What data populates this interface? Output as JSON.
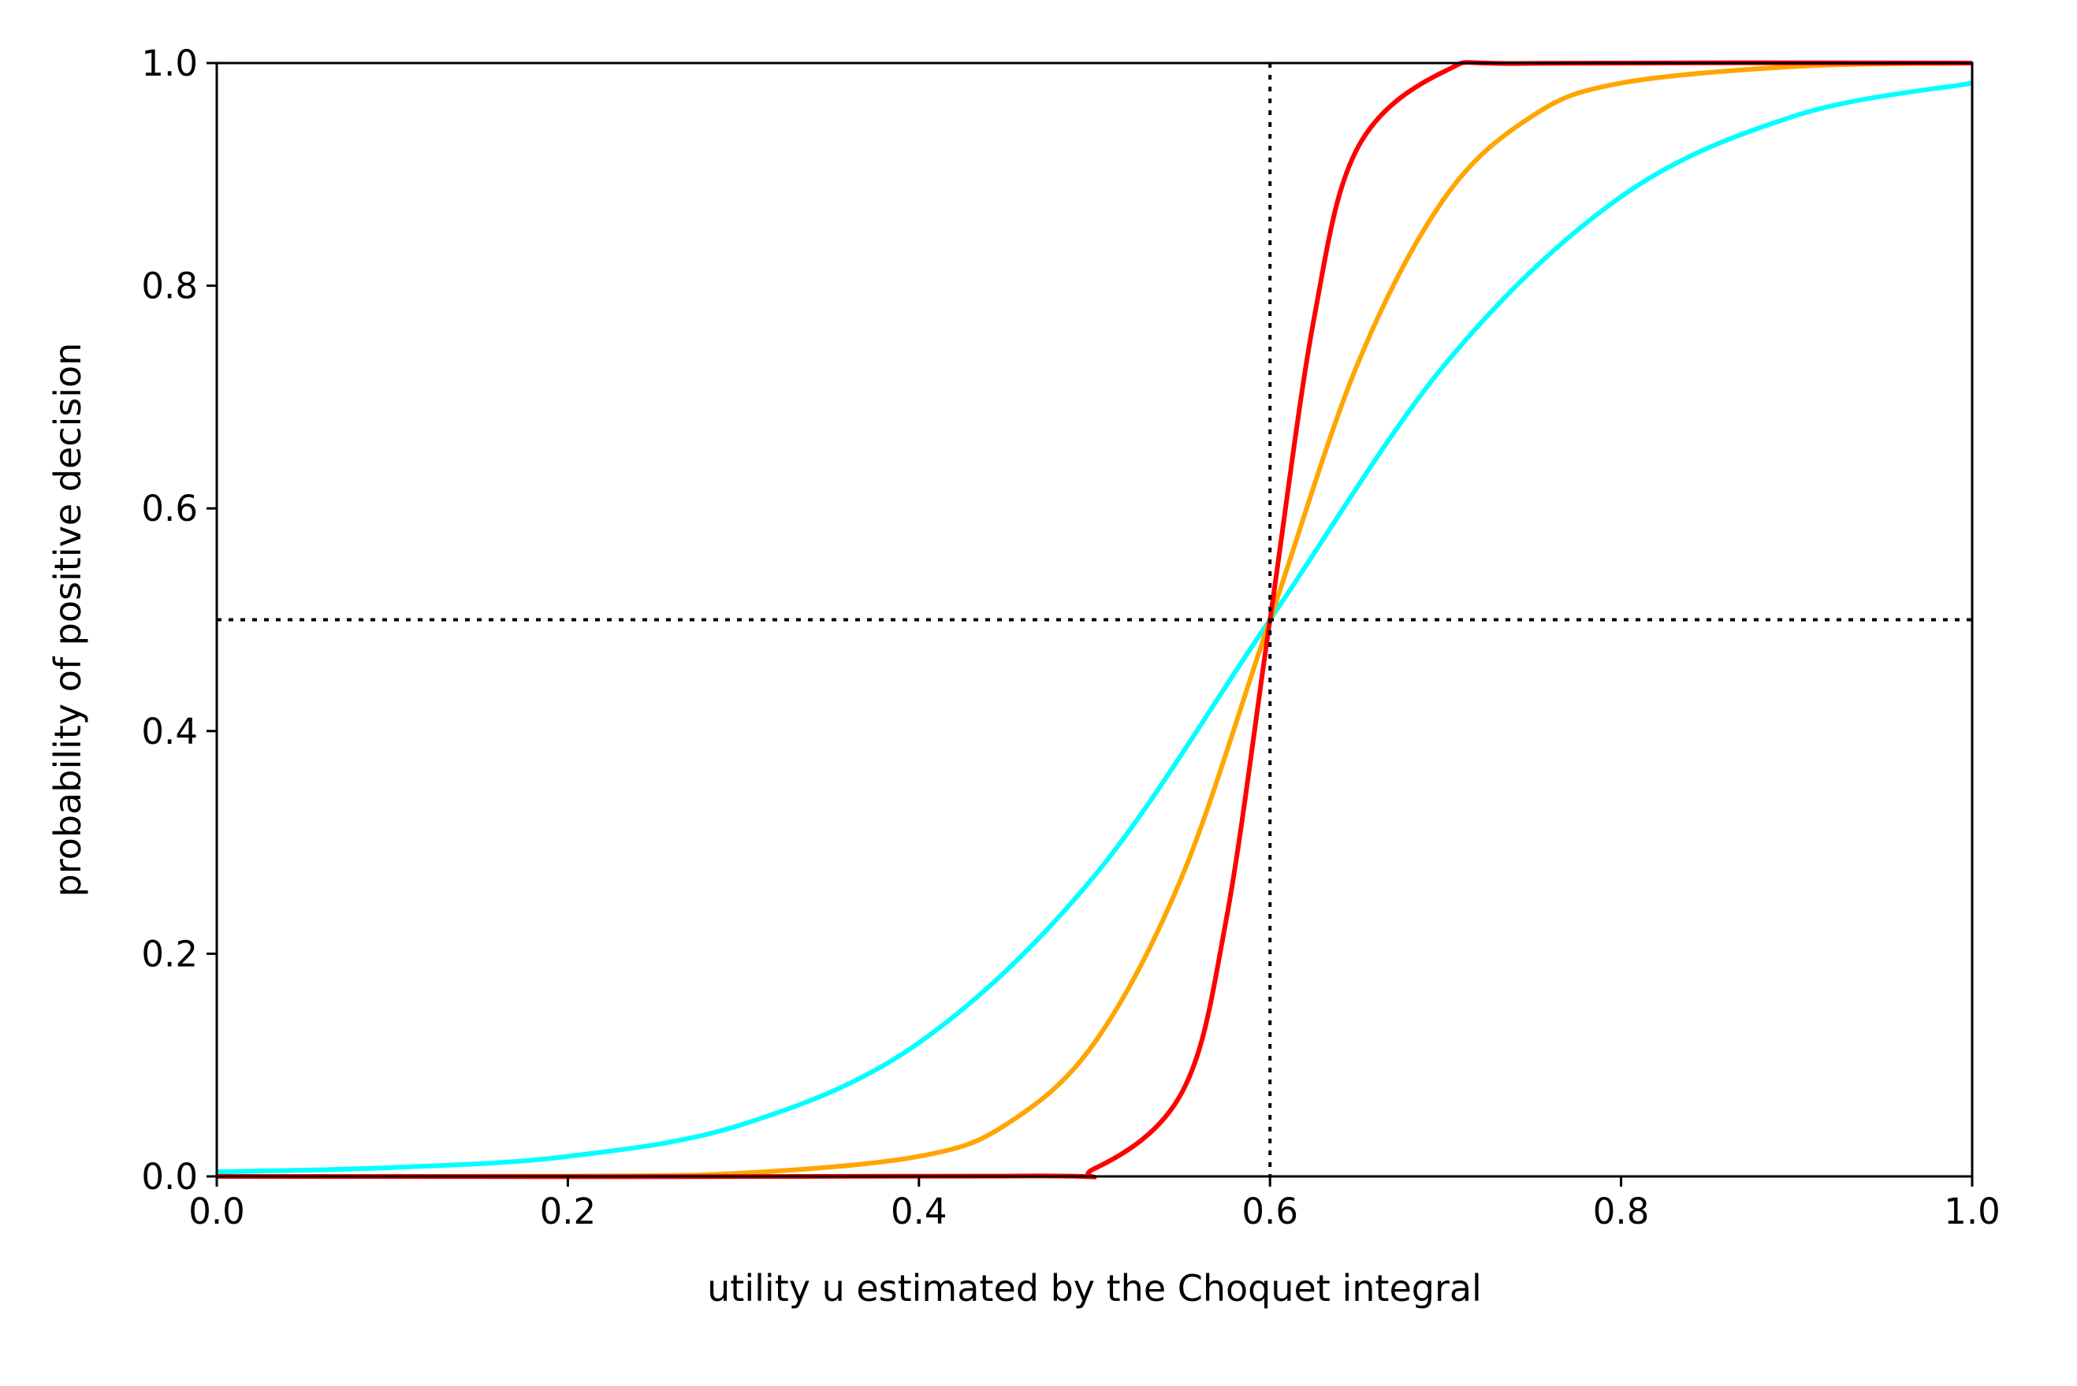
{
  "chart_data": {
    "type": "line",
    "title": "",
    "xlabel": "utility u estimated by the Choquet integral",
    "ylabel": "probability of positive decision",
    "xlim": [
      0.0,
      1.0
    ],
    "ylim": [
      0.0,
      1.0
    ],
    "xticks": [
      "0.0",
      "0.2",
      "0.4",
      "0.6",
      "0.8",
      "1.0"
    ],
    "yticks": [
      "0.0",
      "0.2",
      "0.4",
      "0.6",
      "0.8",
      "1.0"
    ],
    "grid": false,
    "legend": "none",
    "reference_lines": [
      {
        "orientation": "vertical",
        "x": 0.6,
        "style": "dotted",
        "color": "#000000"
      },
      {
        "orientation": "horizontal",
        "y": 0.5,
        "style": "dotted",
        "color": "#000000"
      }
    ],
    "series": [
      {
        "color": "#00ffff",
        "x": [
          0.0,
          0.1,
          0.2,
          0.3,
          0.4,
          0.5,
          0.6,
          0.7,
          0.8,
          0.9,
          1.0
        ],
        "y": [
          0.004,
          0.008,
          0.018,
          0.047,
          0.12,
          0.27,
          0.5,
          0.73,
          0.88,
          0.953,
          0.982
        ]
      },
      {
        "color": "#ffa500",
        "x": [
          0.0,
          0.2,
          0.3,
          0.4,
          0.45,
          0.5,
          0.55,
          0.6,
          0.65,
          0.7,
          0.75,
          0.8,
          0.9,
          1.0
        ],
        "y": [
          0.0,
          0.0003,
          0.003,
          0.018,
          0.047,
          0.12,
          0.27,
          0.5,
          0.73,
          0.88,
          0.953,
          0.982,
          0.997,
          1.0
        ]
      },
      {
        "color": "#ff0000",
        "x": [
          0.0,
          0.45,
          0.5,
          0.55,
          0.575,
          0.6,
          0.625,
          0.65,
          0.7,
          0.75,
          1.0
        ],
        "y": [
          0.0,
          0.0003,
          0.007,
          0.076,
          0.23,
          0.5,
          0.77,
          0.924,
          0.993,
          0.9997,
          1.0
        ]
      }
    ]
  }
}
